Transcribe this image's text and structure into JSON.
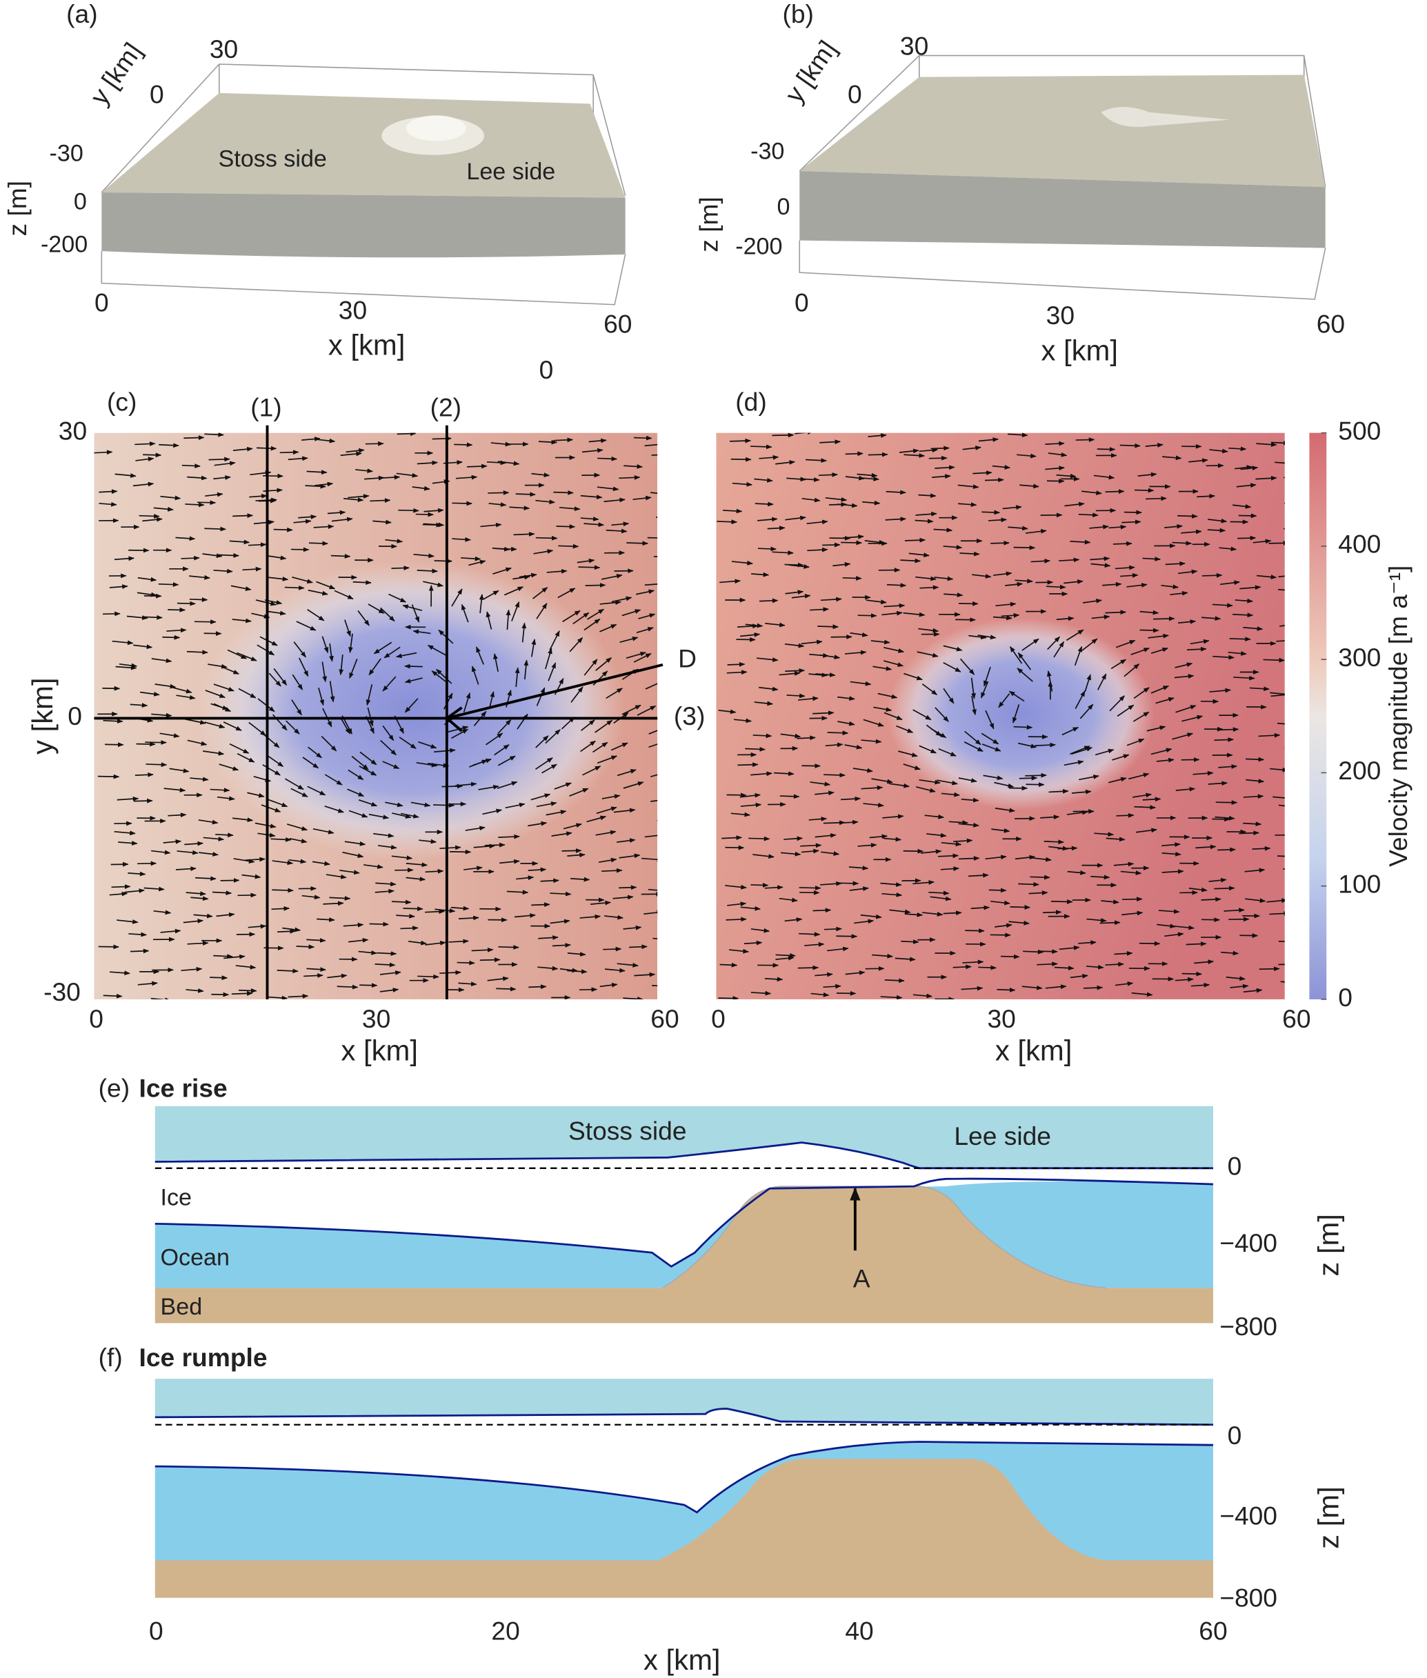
{
  "panels": {
    "a": {
      "label": "(a)",
      "y_axis_label": "y [km]",
      "y_ticks": [
        "30",
        "0",
        "-30"
      ],
      "z_axis_label": "z [m]",
      "z_ticks": [
        "0",
        "-200"
      ],
      "x_axis_label": "x [km]",
      "x_ticks": [
        "0",
        "30",
        "60"
      ],
      "annotations": [
        "Stoss side",
        "Lee side"
      ],
      "stray_label": "0"
    },
    "b": {
      "label": "(b)",
      "y_axis_label": "y [km]",
      "y_ticks": [
        "30",
        "0",
        "-30"
      ],
      "z_axis_label": "z [m]",
      "z_ticks": [
        "0",
        "-200"
      ],
      "x_axis_label": "x [km]",
      "x_ticks": [
        "0",
        "30",
        "60"
      ]
    },
    "c": {
      "label": "(c)",
      "y_axis_label": "y [km]",
      "y_ticks": [
        "30",
        "0",
        "-30"
      ],
      "x_axis_label": "x [km]",
      "x_ticks": [
        "0",
        "30",
        "60"
      ],
      "transects": [
        "(1)",
        "(2)",
        "(3)"
      ],
      "direction_label": "D"
    },
    "d": {
      "label": "(d)",
      "x_axis_label": "x [km]",
      "x_ticks": [
        "0",
        "30",
        "60"
      ]
    },
    "colorbar": {
      "label": "Velocity magnitude [m a⁻¹]",
      "ticks": [
        "500",
        "400",
        "300",
        "200",
        "100",
        "0"
      ]
    },
    "e": {
      "label": "(e)",
      "title": "Ice rise",
      "annotations": [
        "Stoss side",
        "Lee side",
        "Ice",
        "Ocean",
        "Bed",
        "A"
      ],
      "z_axis_label": "z [m]",
      "z_ticks": [
        "0",
        "−400",
        "−800"
      ]
    },
    "f": {
      "label": "(f)",
      "title": "Ice rumple",
      "z_axis_label": "z [m]",
      "z_ticks": [
        "0",
        "−400",
        "−800"
      ],
      "x_axis_label": "x [km]",
      "x_ticks": [
        "0",
        "20",
        "40",
        "60"
      ]
    }
  }
}
